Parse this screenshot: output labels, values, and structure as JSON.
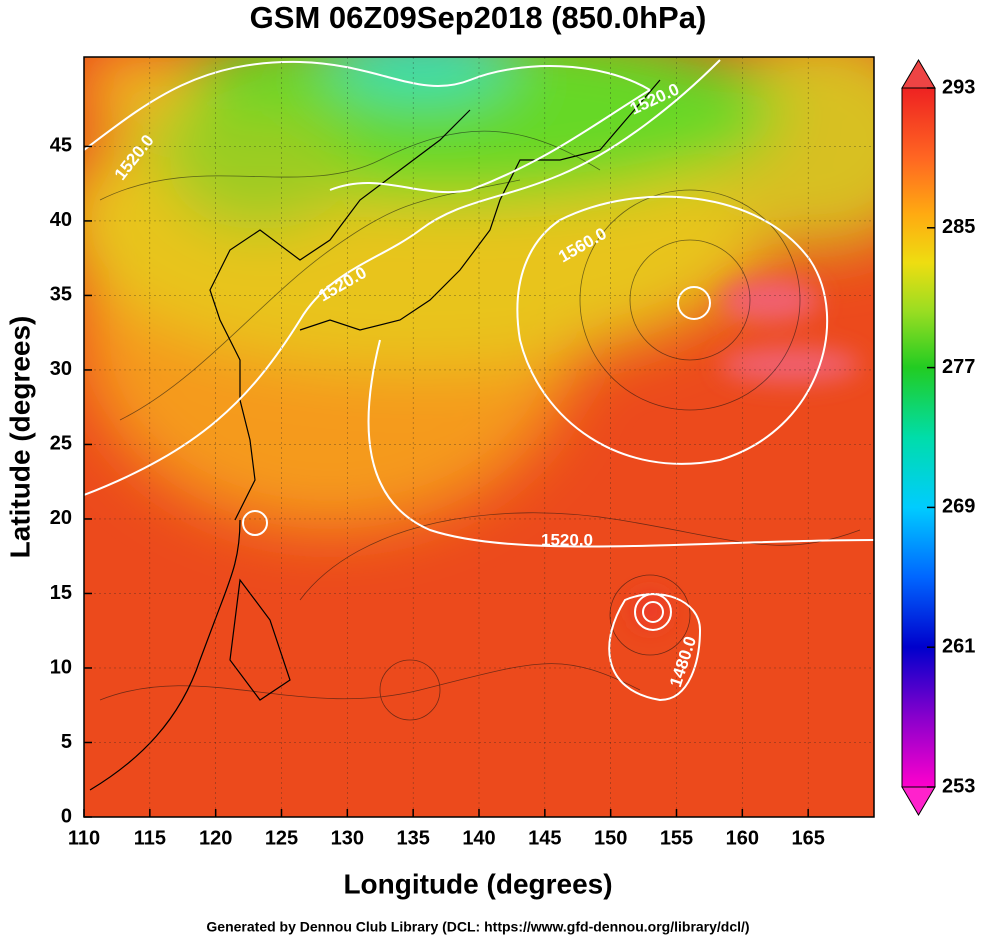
{
  "chart_data": {
    "type": "map",
    "title": "GSM 06Z09Sep2018 (850.0hPa)",
    "x_label": "Longitude (degrees)",
    "y_label": "Latitude  (degrees)",
    "xlim": [
      110,
      170
    ],
    "xticks": [
      110,
      115,
      120,
      125,
      130,
      135,
      140,
      145,
      150,
      155,
      160,
      165
    ],
    "ylim": [
      0,
      51
    ],
    "yticks": [
      0,
      5,
      10,
      15,
      20,
      25,
      30,
      35,
      40,
      45
    ],
    "grid": true,
    "colorbar": {
      "lim": [
        253,
        293
      ],
      "ticks": [
        253,
        261,
        269,
        277,
        285,
        293
      ]
    },
    "contour_labels": [
      "1520.0",
      "1520.0",
      "1520.0",
      "1560.0",
      "1520.0",
      "1480.0"
    ],
    "footer": "Generated by Dennou Club Library (DCL: https://www.gfd-dennou.org/library/dcl/)"
  }
}
